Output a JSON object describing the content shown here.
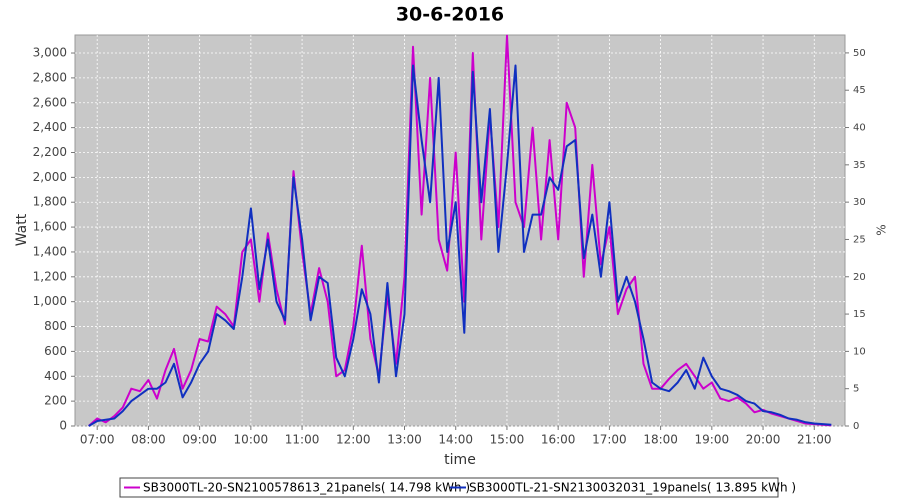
{
  "chart_data": {
    "type": "line",
    "title": "30-6-2016",
    "x_label": "time",
    "y_label": "Watt",
    "y2_label": "%",
    "x": [
      "06:50",
      "07:00",
      "07:10",
      "07:20",
      "07:30",
      "07:40",
      "07:50",
      "08:00",
      "08:10",
      "08:20",
      "08:30",
      "08:40",
      "08:50",
      "09:00",
      "09:10",
      "09:20",
      "09:30",
      "09:40",
      "09:50",
      "10:00",
      "10:10",
      "10:20",
      "10:30",
      "10:40",
      "10:50",
      "11:00",
      "11:10",
      "11:20",
      "11:30",
      "11:40",
      "11:50",
      "12:00",
      "12:10",
      "12:20",
      "12:30",
      "12:40",
      "12:50",
      "13:00",
      "13:10",
      "13:20",
      "13:30",
      "13:40",
      "13:50",
      "14:00",
      "14:10",
      "14:20",
      "14:30",
      "14:40",
      "14:50",
      "15:00",
      "15:10",
      "15:20",
      "15:30",
      "15:40",
      "15:50",
      "16:00",
      "16:10",
      "16:20",
      "16:30",
      "16:40",
      "16:50",
      "17:00",
      "17:10",
      "17:20",
      "17:30",
      "17:40",
      "17:50",
      "18:00",
      "18:10",
      "18:20",
      "18:30",
      "18:40",
      "18:50",
      "19:00",
      "19:10",
      "19:20",
      "19:30",
      "19:40",
      "19:50",
      "20:00",
      "20:10",
      "20:20",
      "20:30",
      "20:40",
      "20:50",
      "21:00",
      "21:10",
      "21:20"
    ],
    "series": [
      {
        "name": "SB3000TL-20-SN2100578613_21panels( 14.798 kWh )",
        "color": "#cc00cc",
        "values": [
          0,
          60,
          30,
          80,
          150,
          300,
          280,
          370,
          220,
          450,
          620,
          300,
          450,
          700,
          680,
          960,
          900,
          800,
          1400,
          1500,
          1000,
          1550,
          1100,
          820,
          2050,
          1400,
          900,
          1270,
          1000,
          400,
          450,
          800,
          1450,
          700,
          400,
          1050,
          500,
          1200,
          3050,
          1700,
          2800,
          1500,
          1250,
          2200,
          1000,
          3000,
          1500,
          2500,
          1600,
          3140,
          1800,
          1600,
          2400,
          1500,
          2300,
          1500,
          2600,
          2400,
          1200,
          2100,
          1300,
          1600,
          900,
          1100,
          1200,
          500,
          300,
          300,
          380,
          450,
          500,
          400,
          300,
          350,
          220,
          200,
          230,
          180,
          110,
          130,
          100,
          80,
          60,
          40,
          20,
          15,
          10,
          5
        ]
      },
      {
        "name": "SB3000TL-21-SN2130032031_19panels( 13.895 kWh )",
        "color": "#1030c0",
        "values": [
          0,
          40,
          50,
          60,
          120,
          200,
          250,
          300,
          300,
          350,
          500,
          230,
          350,
          500,
          600,
          900,
          850,
          780,
          1200,
          1750,
          1100,
          1500,
          1000,
          850,
          2000,
          1500,
          850,
          1200,
          1150,
          550,
          400,
          700,
          1100,
          900,
          350,
          1150,
          400,
          900,
          2900,
          2300,
          1800,
          2800,
          1400,
          1800,
          750,
          2850,
          1800,
          2550,
          1400,
          2100,
          2900,
          1400,
          1700,
          1700,
          2000,
          1900,
          2250,
          2300,
          1350,
          1700,
          1200,
          1800,
          1000,
          1200,
          1000,
          700,
          350,
          300,
          280,
          350,
          450,
          300,
          550,
          400,
          300,
          280,
          250,
          200,
          180,
          120,
          110,
          90,
          60,
          50,
          30,
          20,
          15,
          10
        ]
      }
    ],
    "xlim": [
      "06:34",
      "21:36"
    ],
    "xticks": [
      "07:00",
      "08:00",
      "09:00",
      "10:00",
      "11:00",
      "12:00",
      "13:00",
      "14:00",
      "15:00",
      "16:00",
      "17:00",
      "18:00",
      "19:00",
      "20:00",
      "21:00"
    ],
    "ylim": [
      0,
      3145
    ],
    "yticks": [
      0,
      200,
      400,
      600,
      800,
      {
        "value": 1000,
        "label": "1,000"
      },
      {
        "value": 1200,
        "label": "1,200"
      },
      {
        "value": 1400,
        "label": "1,400"
      },
      {
        "value": 1600,
        "label": "1,600"
      },
      {
        "value": 1800,
        "label": "1,800"
      },
      {
        "value": 2000,
        "label": "2,000"
      },
      {
        "value": 2200,
        "label": "2,200"
      },
      {
        "value": 2400,
        "label": "2,400"
      },
      {
        "value": 2600,
        "label": "2,600"
      },
      {
        "value": 2800,
        "label": "2,800"
      },
      {
        "value": 3000,
        "label": "3,000"
      }
    ],
    "y2lim": [
      0,
      52.4
    ],
    "y2ticks": [
      0,
      5,
      10,
      15,
      20,
      25,
      30,
      35,
      40,
      45,
      50
    ],
    "grid": true,
    "legend": "bottom"
  }
}
